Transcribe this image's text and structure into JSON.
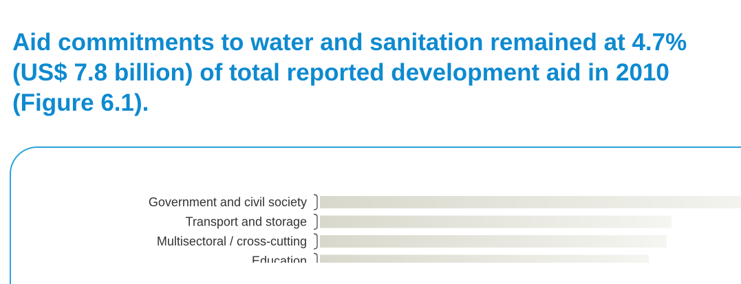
{
  "headline": {
    "line1": "Aid commitments to water and sanitation remained at 4.7%",
    "line2": "(US$ 7.8 billion) of total reported development aid in 2010",
    "line3": "(Figure 6.1)."
  },
  "colors": {
    "headline": "#0e8ad0",
    "panel_border": "#2aa2dc",
    "bar_dark": "#d8d8cc",
    "bar_light": "#f5f5f1"
  },
  "chart_data": {
    "type": "bar",
    "orientation": "horizontal",
    "categories": [
      "Government and civil society",
      "Transport and storage",
      "Multisectoral / cross-cutting",
      "Education"
    ],
    "values": [
      100,
      78,
      77,
      73
    ],
    "title": "",
    "xlabel": "",
    "ylabel": "",
    "xlim": [
      0,
      100
    ],
    "grid": false,
    "legend": "none"
  }
}
